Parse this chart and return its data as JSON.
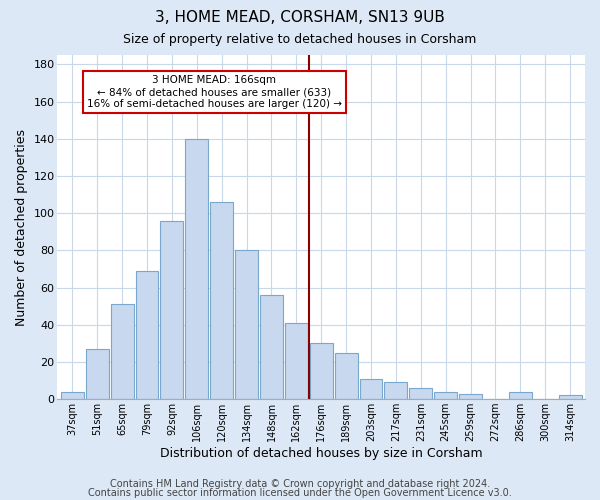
{
  "title": "3, HOME MEAD, CORSHAM, SN13 9UB",
  "subtitle": "Size of property relative to detached houses in Corsham",
  "xlabel": "Distribution of detached houses by size in Corsham",
  "ylabel": "Number of detached properties",
  "bar_color": "#c8d8ee",
  "bar_edge_color": "#7aa8cc",
  "categories": [
    "37sqm",
    "51sqm",
    "65sqm",
    "79sqm",
    "92sqm",
    "106sqm",
    "120sqm",
    "134sqm",
    "148sqm",
    "162sqm",
    "176sqm",
    "189sqm",
    "203sqm",
    "217sqm",
    "231sqm",
    "245sqm",
    "259sqm",
    "272sqm",
    "286sqm",
    "300sqm",
    "314sqm"
  ],
  "values": [
    4,
    27,
    51,
    69,
    96,
    140,
    106,
    80,
    56,
    41,
    30,
    25,
    11,
    9,
    6,
    4,
    3,
    0,
    4,
    0,
    2
  ],
  "ylim": [
    0,
    185
  ],
  "yticks": [
    0,
    20,
    40,
    60,
    80,
    100,
    120,
    140,
    160,
    180
  ],
  "vline_x_index": 9.5,
  "vline_color": "#8b0000",
  "annotation_title": "3 HOME MEAD: 166sqm",
  "annotation_line1": "← 84% of detached houses are smaller (633)",
  "annotation_line2": "16% of semi-detached houses are larger (120) →",
  "annotation_box_color": "#ffffff",
  "annotation_box_edge_color": "#cc0000",
  "footer1": "Contains HM Land Registry data © Crown copyright and database right 2024.",
  "footer2": "Contains public sector information licensed under the Open Government Licence v3.0.",
  "fig_background_color": "#dce8f5",
  "plot_background_color": "#ffffff",
  "grid_color": "#c8d8e8",
  "title_fontsize": 11,
  "subtitle_fontsize": 9,
  "footer_fontsize": 7
}
